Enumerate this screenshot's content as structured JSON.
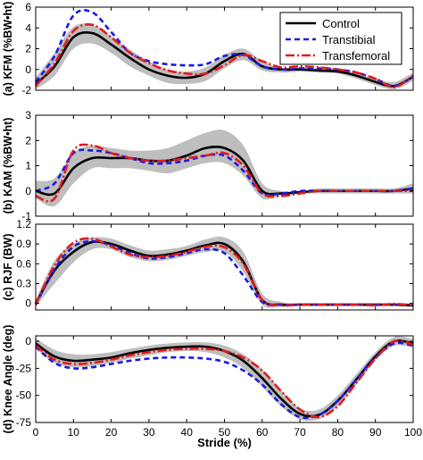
{
  "colors": {
    "control": "#000000",
    "transtibial": "#1a1ae6",
    "transfemoral": "#e31a1c",
    "band": "#b3b3b3"
  },
  "legend": {
    "placement": "top-right (panel a)",
    "entries": [
      {
        "label": "Control",
        "style": "solid",
        "color": "#000000"
      },
      {
        "label": "Transtibial",
        "style": "dashed",
        "color": "#1a1ae6"
      },
      {
        "label": "Transfemoral",
        "style": "dash-dot",
        "color": "#e31a1c"
      }
    ]
  },
  "chart_data": [
    {
      "type": "line",
      "panel_label": "(a)",
      "ylabel": "KFM (%BW•ht)",
      "xlim": [
        0,
        100
      ],
      "ylim": [
        -2,
        6
      ],
      "yticks": [
        "-2",
        "0",
        "2",
        "4",
        "6"
      ],
      "x_tick_labels_visible": false,
      "x": [
        0,
        5,
        10,
        15,
        20,
        25,
        30,
        35,
        40,
        45,
        50,
        55,
        60,
        65,
        70,
        75,
        80,
        85,
        90,
        95,
        100
      ],
      "band": {
        "upper": [
          -0.8,
          1.6,
          4.1,
          4.3,
          3.2,
          1.9,
          0.8,
          0.0,
          -0.2,
          0.2,
          1.4,
          2.0,
          0.8,
          0.2,
          0.2,
          0.1,
          0.0,
          -0.4,
          -0.9,
          -1.2,
          -0.3
        ],
        "lower": [
          -1.9,
          -0.6,
          2.0,
          2.5,
          1.6,
          0.3,
          -0.6,
          -1.3,
          -1.4,
          -1.1,
          0.1,
          0.9,
          -0.1,
          -0.3,
          -0.2,
          -0.3,
          -0.4,
          -0.9,
          -1.5,
          -1.9,
          -1.1
        ]
      },
      "series": [
        {
          "name": "Control",
          "values": [
            -1.4,
            0.3,
            3.1,
            3.5,
            2.4,
            1.1,
            0.0,
            -0.6,
            -0.8,
            -0.4,
            0.8,
            1.5,
            0.3,
            0.0,
            0.0,
            -0.1,
            -0.2,
            -0.6,
            -1.2,
            -1.6,
            -0.7
          ]
        },
        {
          "name": "Transtibial",
          "values": [
            -1.2,
            1.3,
            5.2,
            5.5,
            3.6,
            1.6,
            0.8,
            0.5,
            0.4,
            0.5,
            1.3,
            1.4,
            0.3,
            0.0,
            0.1,
            0.1,
            0.0,
            -0.3,
            -0.9,
            -1.6,
            -0.7
          ]
        },
        {
          "name": "Transfemoral",
          "values": [
            -1.6,
            0.6,
            3.7,
            4.3,
            3.1,
            1.6,
            0.6,
            -0.1,
            -0.4,
            -0.4,
            0.4,
            1.4,
            0.8,
            0.2,
            0.3,
            0.2,
            0.0,
            -0.3,
            -0.9,
            -1.7,
            -0.6
          ]
        }
      ]
    },
    {
      "type": "line",
      "panel_label": "(b)",
      "ylabel": "KAM (%BW•ht)",
      "xlim": [
        0,
        100
      ],
      "ylim": [
        -1,
        3
      ],
      "yticks": [
        "-1",
        "0",
        "1",
        "2",
        "3"
      ],
      "x_tick_labels_visible": false,
      "x": [
        0,
        5,
        10,
        15,
        20,
        25,
        30,
        35,
        40,
        45,
        50,
        55,
        60,
        65,
        70,
        75,
        80,
        85,
        90,
        95,
        100
      ],
      "band": {
        "upper": [
          0.4,
          0.5,
          1.5,
          1.8,
          1.7,
          1.6,
          1.6,
          1.7,
          2.0,
          2.3,
          2.4,
          1.8,
          0.3,
          0.0,
          0.0,
          0.1,
          0.1,
          0.1,
          0.1,
          0.1,
          0.3
        ],
        "lower": [
          -0.3,
          -0.6,
          0.3,
          0.9,
          0.9,
          0.9,
          0.8,
          0.7,
          0.9,
          1.1,
          1.1,
          0.6,
          -0.3,
          -0.2,
          -0.1,
          -0.1,
          -0.1,
          -0.1,
          -0.1,
          -0.1,
          -0.1
        ]
      },
      "series": [
        {
          "name": "Control",
          "values": [
            0.0,
            -0.1,
            0.9,
            1.3,
            1.3,
            1.3,
            1.2,
            1.2,
            1.4,
            1.7,
            1.7,
            1.2,
            0.0,
            -0.1,
            -0.05,
            0.0,
            0.0,
            0.0,
            0.0,
            0.0,
            0.1
          ]
        },
        {
          "name": "Transtibial",
          "values": [
            0.0,
            0.3,
            1.5,
            1.6,
            1.5,
            1.3,
            1.1,
            1.1,
            1.2,
            1.4,
            1.4,
            0.8,
            -0.1,
            -0.1,
            0.0,
            0.0,
            0.0,
            0.0,
            0.0,
            0.0,
            0.1
          ]
        },
        {
          "name": "Transfemoral",
          "values": [
            -0.2,
            -0.3,
            1.6,
            1.8,
            1.5,
            1.3,
            1.2,
            1.2,
            1.3,
            1.4,
            1.5,
            1.0,
            -0.1,
            -0.2,
            -0.1,
            0.0,
            0.0,
            0.0,
            0.0,
            0.0,
            0.0
          ]
        }
      ]
    },
    {
      "type": "line",
      "panel_label": "(c)",
      "ylabel": "RJF (BW)",
      "xlim": [
        0,
        100
      ],
      "ylim": [
        -0.1,
        1.2
      ],
      "yticks": [
        "0",
        "0.3",
        "0.6",
        "0.9",
        "1.2"
      ],
      "x_tick_labels_visible": false,
      "x": [
        0,
        5,
        10,
        15,
        20,
        25,
        30,
        35,
        40,
        45,
        50,
        55,
        60,
        65,
        70,
        75,
        80,
        85,
        90,
        95,
        100
      ],
      "band": {
        "upper": [
          0.05,
          0.65,
          0.9,
          1.0,
          0.98,
          0.88,
          0.8,
          0.82,
          0.87,
          0.97,
          1.0,
          0.78,
          0.15,
          0.02,
          0.0,
          0.0,
          0.0,
          0.0,
          0.0,
          0.0,
          0.0
        ],
        "lower": [
          -0.05,
          0.3,
          0.62,
          0.82,
          0.82,
          0.7,
          0.64,
          0.66,
          0.72,
          0.78,
          0.78,
          0.48,
          -0.02,
          -0.05,
          -0.04,
          -0.04,
          -0.04,
          -0.04,
          -0.04,
          -0.04,
          -0.06
        ]
      },
      "series": [
        {
          "name": "Control",
          "values": [
            0.0,
            0.5,
            0.78,
            0.93,
            0.9,
            0.8,
            0.72,
            0.74,
            0.8,
            0.88,
            0.9,
            0.63,
            0.05,
            -0.02,
            -0.02,
            -0.02,
            -0.02,
            -0.02,
            -0.02,
            -0.02,
            -0.03
          ]
        },
        {
          "name": "Transtibial",
          "values": [
            -0.02,
            0.52,
            0.86,
            0.94,
            0.88,
            0.76,
            0.68,
            0.7,
            0.76,
            0.82,
            0.76,
            0.42,
            0.02,
            -0.02,
            -0.02,
            -0.02,
            -0.02,
            -0.02,
            -0.02,
            -0.02,
            -0.03
          ]
        },
        {
          "name": "Transfemoral",
          "values": [
            -0.02,
            0.58,
            0.92,
            0.98,
            0.86,
            0.74,
            0.7,
            0.72,
            0.78,
            0.86,
            0.85,
            0.6,
            0.05,
            -0.03,
            -0.02,
            -0.02,
            -0.02,
            -0.02,
            -0.03,
            -0.01,
            -0.03
          ]
        }
      ]
    },
    {
      "type": "line",
      "panel_label": "(d)",
      "ylabel": "Knee Angle (deg)",
      "xlabel": "Stride (%)",
      "xlim": [
        0,
        100
      ],
      "ylim": [
        -75,
        5
      ],
      "yticks": [
        "-75",
        "-50",
        "-25",
        "0"
      ],
      "xticks": [
        "0",
        "10",
        "20",
        "30",
        "40",
        "50",
        "60",
        "70",
        "80",
        "90",
        "100"
      ],
      "x": [
        0,
        5,
        10,
        15,
        20,
        25,
        30,
        35,
        40,
        45,
        50,
        55,
        60,
        65,
        70,
        75,
        80,
        85,
        90,
        95,
        100
      ],
      "band": {
        "upper": [
          3,
          -8,
          -12,
          -12,
          -10,
          -7,
          -4,
          -2,
          -1,
          -1,
          -4,
          -12,
          -26,
          -45,
          -62,
          -63,
          -50,
          -30,
          -10,
          4,
          2
        ],
        "lower": [
          -7,
          -20,
          -24,
          -23,
          -20,
          -16,
          -13,
          -10,
          -9,
          -10,
          -15,
          -25,
          -42,
          -60,
          -72,
          -72,
          -60,
          -40,
          -18,
          -4,
          -6
        ]
      },
      "series": [
        {
          "name": "Control",
          "values": [
            -2,
            -14,
            -18,
            -17,
            -15,
            -11,
            -8,
            -6,
            -5,
            -5,
            -9,
            -18,
            -34,
            -53,
            -67,
            -68,
            -55,
            -35,
            -14,
            0,
            -2
          ]
        },
        {
          "name": "Transtibial",
          "values": [
            -5,
            -20,
            -25,
            -24,
            -21,
            -18,
            -16,
            -15,
            -15,
            -16,
            -19,
            -27,
            -40,
            -58,
            -70,
            -68,
            -55,
            -35,
            -15,
            -2,
            -4
          ]
        },
        {
          "name": "Transfemoral",
          "values": [
            -4,
            -17,
            -21,
            -20,
            -17,
            -13,
            -10,
            -8,
            -7,
            -7,
            -9,
            -15,
            -27,
            -46,
            -63,
            -70,
            -60,
            -38,
            -16,
            0,
            -3
          ]
        }
      ]
    }
  ]
}
